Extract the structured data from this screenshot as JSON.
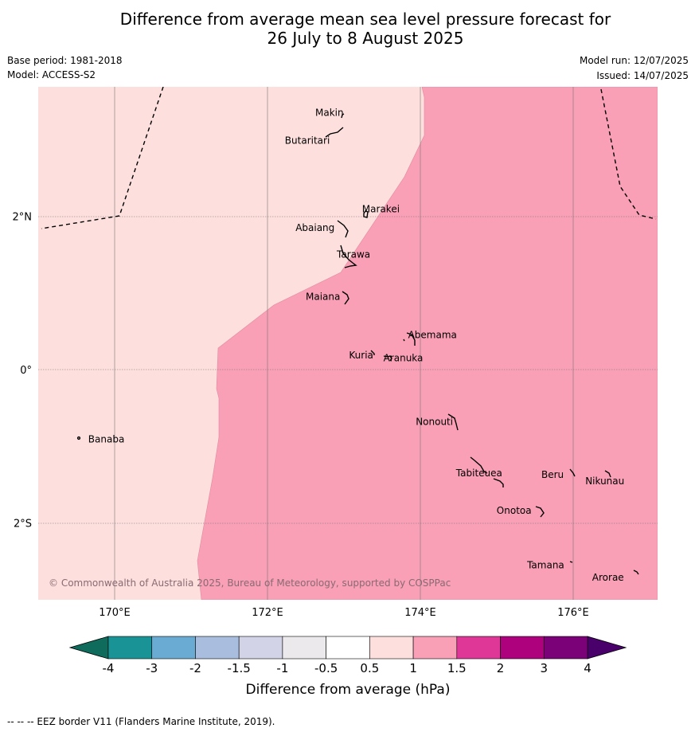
{
  "title": {
    "line1": "Difference from average mean sea level pressure forecast for",
    "line2": "26 July to 8 August 2025"
  },
  "meta": {
    "base_period": "Base period: 1981-2018",
    "model": "Model: ACCESS-S2",
    "model_run": "Model run: 12/07/2025",
    "issued": "Issued: 14/07/2025"
  },
  "map": {
    "lon_labels": [
      "170°E",
      "172°E",
      "174°E",
      "176°E"
    ],
    "lat_labels": [
      "2°N",
      "0°",
      "2°S"
    ],
    "copyright": "© Commonwealth of Australia 2025, Bureau of Meteorology, supported by COSPPac",
    "colors": {
      "light_band": "#fddfdd",
      "pink_band": "#f99fb6"
    },
    "places": [
      {
        "name": "Makin",
        "lon": 173.0,
        "lat": 3.33
      },
      {
        "name": "Butaritari",
        "lon": 172.8,
        "lat": 3.07
      },
      {
        "name": "Marakei",
        "lon": 173.3,
        "lat": 2.0
      },
      {
        "name": "Abaiang",
        "lon": 172.95,
        "lat": 1.82
      },
      {
        "name": "Tarawa",
        "lon": 173.0,
        "lat": 1.42
      },
      {
        "name": "Maiana",
        "lon": 173.0,
        "lat": 0.93
      },
      {
        "name": "Abemama",
        "lon": 173.85,
        "lat": 0.38
      },
      {
        "name": "Kuria",
        "lon": 173.4,
        "lat": 0.22
      },
      {
        "name": "Aranuka",
        "lon": 173.6,
        "lat": 0.17
      },
      {
        "name": "Banaba",
        "lon": 169.55,
        "lat": -0.87
      },
      {
        "name": "Nonouti",
        "lon": 174.45,
        "lat": -0.67
      },
      {
        "name": "Tabiteuea",
        "lon": 174.8,
        "lat": -1.3
      },
      {
        "name": "Beru",
        "lon": 176.0,
        "lat": -1.33
      },
      {
        "name": "Nikunau",
        "lon": 176.45,
        "lat": -1.37
      },
      {
        "name": "Onotoa",
        "lon": 175.55,
        "lat": -1.82
      },
      {
        "name": "Tamana",
        "lon": 175.98,
        "lat": -2.5
      },
      {
        "name": "Arorae",
        "lon": 176.8,
        "lat": -2.65
      }
    ]
  },
  "colorbar": {
    "label": "Difference from average (hPa)",
    "ticks": [
      "-4",
      "-3",
      "-2",
      "-1.5",
      "-1",
      "-0.5",
      "0.5",
      "1",
      "1.5",
      "2",
      "3",
      "4"
    ],
    "colors": [
      "#1a9396",
      "#6aabd3",
      "#a9bedf",
      "#d2d3e7",
      "#ebe9eb",
      "#ffffff",
      "#fddfdd",
      "#f99fb6",
      "#df3797",
      "#ae017e",
      "#7a0177"
    ],
    "low_extend": "#0f6b5c",
    "high_extend": "#49006a"
  },
  "footer": "--  --  -- EEZ border V11 (Flanders Marine Institute, 2019)."
}
